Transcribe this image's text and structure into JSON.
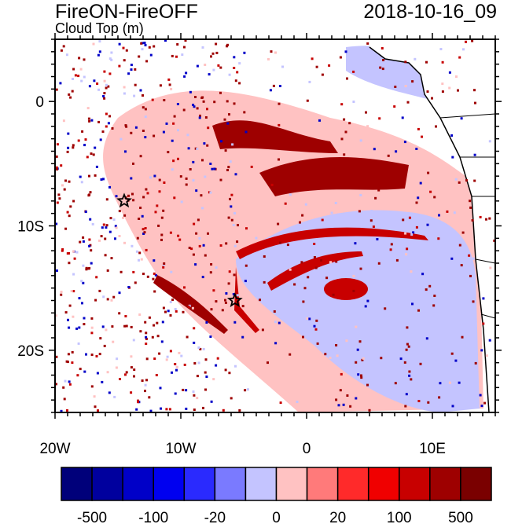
{
  "title": "FireON-FireOFF",
  "subtitle": "Cloud Top (m)",
  "datetime": "2018-10-16_09",
  "map": {
    "lon_range": [
      -20,
      15
    ],
    "lat_range": [
      -25,
      5
    ],
    "x_ticks": [
      {
        "lon": -20,
        "label": "20W"
      },
      {
        "lon": -10,
        "label": "10W"
      },
      {
        "lon": 0,
        "label": "0"
      },
      {
        "lon": 10,
        "label": "10E"
      }
    ],
    "y_ticks": [
      {
        "lat": 0,
        "label": "0"
      },
      {
        "lat": -10,
        "label": "10S"
      },
      {
        "lat": -20,
        "label": "20S"
      }
    ],
    "markers": [
      {
        "name": "star",
        "lon": -14.5,
        "lat": -8
      },
      {
        "name": "star",
        "lon": -5.7,
        "lat": -16
      }
    ]
  },
  "colorbar": {
    "colors": [
      "#00007a",
      "#00009e",
      "#0000c8",
      "#0000f0",
      "#2a2afe",
      "#7a7aff",
      "#c4c4ff",
      "#ffc2c2",
      "#ff7a7a",
      "#ff2a2a",
      "#f00000",
      "#c80000",
      "#9e0000",
      "#7a0000"
    ],
    "labels": [
      {
        "after_box": 1,
        "text": "-500"
      },
      {
        "after_box": 3,
        "text": "-100"
      },
      {
        "after_box": 5,
        "text": "-20"
      },
      {
        "after_box": 7,
        "text": "0"
      },
      {
        "after_box": 9,
        "text": "20"
      },
      {
        "after_box": 11,
        "text": "100"
      },
      {
        "after_box": 13,
        "text": "500"
      }
    ]
  }
}
